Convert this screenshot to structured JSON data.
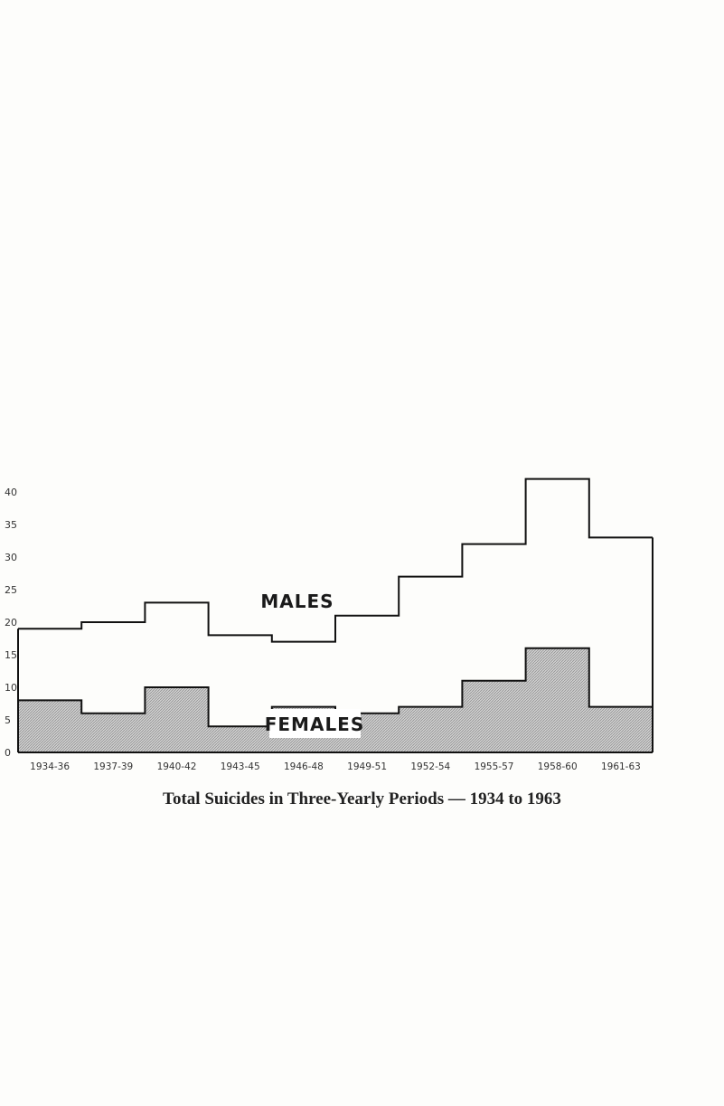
{
  "chart_data": {
    "type": "step",
    "categories": [
      "1934-36",
      "1937-39",
      "1940-42",
      "1943-45",
      "1946-48",
      "1949-51",
      "1952-54",
      "1955-57",
      "1958-60",
      "1961-63"
    ],
    "series": [
      {
        "name": "MALES",
        "values": [
          19,
          20,
          23,
          18,
          17,
          21,
          27,
          32,
          42,
          33
        ],
        "fill": "none",
        "color": "#111111"
      },
      {
        "name": "FEMALES",
        "values": [
          8,
          6,
          10,
          4,
          7,
          6,
          7,
          11,
          16,
          7
        ],
        "fill": "hatched-gray",
        "color": "#111111"
      }
    ],
    "yticks": [
      0,
      5,
      10,
      15,
      20,
      25,
      30,
      35,
      40
    ],
    "ylim": [
      0,
      40
    ],
    "grid": false,
    "legend": "none",
    "title": "Total Suicides in Three-Yearly Periods — 1934 to 1963"
  }
}
